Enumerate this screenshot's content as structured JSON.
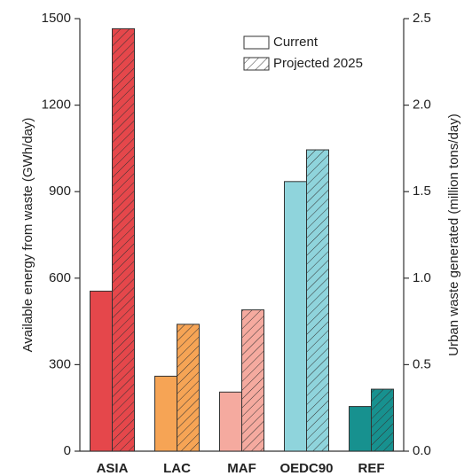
{
  "chart_data": {
    "type": "bar",
    "categories": [
      "ASIA",
      "LAC",
      "MAF",
      "OEDC90",
      "REF"
    ],
    "colors": [
      "#e5474b",
      "#f6a455",
      "#f5aa9f",
      "#8fd4dc",
      "#17918f"
    ],
    "series": [
      {
        "name": "Current",
        "values": [
          555,
          260,
          205,
          935,
          155
        ]
      },
      {
        "name": "Projected 2025",
        "hatched": true,
        "values": [
          1465,
          440,
          490,
          1045,
          215
        ]
      }
    ],
    "ylabel": "Available energy from waste (GWh/day)",
    "y2label": "Urban waste generated (million tons/day)",
    "ylim": [
      0,
      1500
    ],
    "yticks": [
      0,
      300,
      600,
      900,
      1200,
      1500
    ],
    "y2lim": [
      0,
      2.5
    ],
    "y2ticks": [
      {
        "value": 0,
        "label": "0.0"
      },
      0.5,
      {
        "value": 1,
        "label": "1.0"
      },
      1.5,
      {
        "value": 2,
        "label": "2.0"
      },
      2.5
    ],
    "legend": "top-right"
  }
}
